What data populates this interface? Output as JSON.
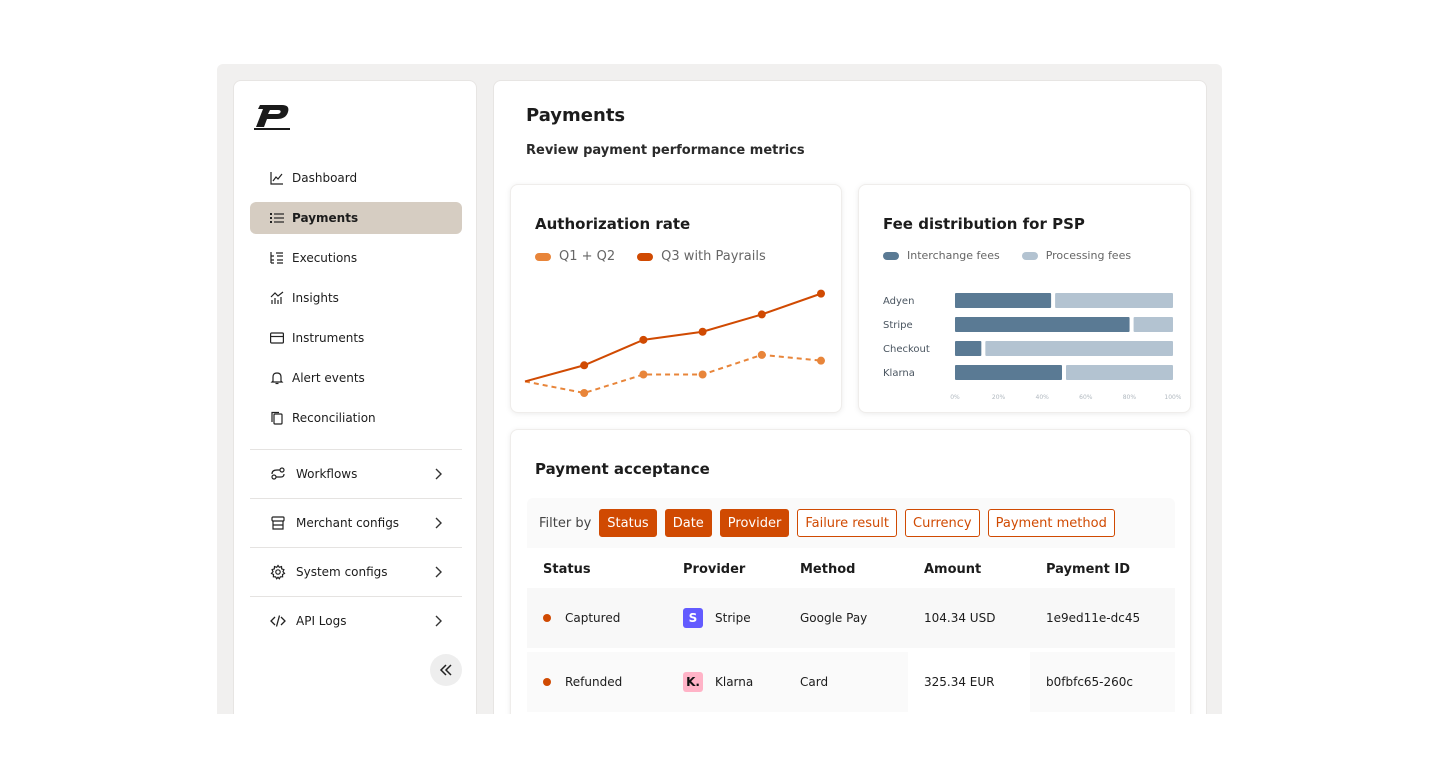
{
  "brand": {
    "logo_letter": "P"
  },
  "sidebar": {
    "items": [
      {
        "label": "Dashboard",
        "icon": "chart-line-icon"
      },
      {
        "label": "Payments",
        "icon": "list-icon"
      },
      {
        "label": "Executions",
        "icon": "tree-list-icon"
      },
      {
        "label": "Insights",
        "icon": "analytics-icon"
      },
      {
        "label": "Instruments",
        "icon": "card-icon"
      },
      {
        "label": "Alert events",
        "icon": "bell-icon"
      },
      {
        "label": "Reconciliation",
        "icon": "copy-icon"
      }
    ],
    "groups": [
      {
        "label": "Workflows",
        "icon": "workflow-icon"
      },
      {
        "label": "Merchant configs",
        "icon": "store-icon"
      },
      {
        "label": "System configs",
        "icon": "gear-icon"
      },
      {
        "label": "API Logs",
        "icon": "code-icon"
      }
    ]
  },
  "main": {
    "title": "Payments",
    "subtitle": "Review payment performance metrics"
  },
  "auth_card": {
    "title": "Authorization rate",
    "legend": [
      {
        "label": "Q1 + Q2",
        "color": "#e8853a"
      },
      {
        "label": "Q3 with Payrails",
        "color": "#d04a02"
      }
    ]
  },
  "fee_card": {
    "title": "Fee distribution for PSP",
    "legend": [
      {
        "label": "Interchange fees",
        "color": "#5a7a94"
      },
      {
        "label": "Processing fees",
        "color": "#b3c3d1"
      }
    ]
  },
  "chart_data": [
    {
      "type": "line",
      "title": "Authorization rate",
      "x": [
        0,
        1,
        2,
        3,
        4,
        5
      ],
      "series": [
        {
          "name": "Q1 + Q2",
          "style": "dashed",
          "color": "#e8853a",
          "values": [
            1,
            0,
            1.6,
            1.6,
            3.3,
            2.8
          ]
        },
        {
          "name": "Q3 with Payrails",
          "style": "solid",
          "color": "#d04a02",
          "values": [
            1,
            2.4,
            4.6,
            5.3,
            6.8,
            8.6
          ]
        }
      ],
      "ylim": [
        0,
        9
      ],
      "grid": false
    },
    {
      "type": "bar",
      "orientation": "horizontal",
      "stacked": true,
      "title": "Fee distribution for PSP",
      "categories": [
        "Adyen",
        "Stripe",
        "Checkout",
        "Klarna"
      ],
      "series": [
        {
          "name": "Interchange fees",
          "color": "#5a7a94",
          "values": [
            45,
            81,
            13,
            50
          ]
        },
        {
          "name": "Processing fees",
          "color": "#b3c3d1",
          "values": [
            55,
            19,
            87,
            50
          ]
        }
      ],
      "xticks": [
        "0%",
        "20%",
        "40%",
        "60%",
        "80%",
        "100%"
      ],
      "xlim": [
        0,
        100
      ]
    }
  ],
  "acceptance": {
    "title": "Payment acceptance",
    "filter_label": "Filter by",
    "filters": [
      {
        "label": "Status",
        "active": true
      },
      {
        "label": "Date",
        "active": true
      },
      {
        "label": "Provider",
        "active": true
      },
      {
        "label": "Failure result",
        "active": false
      },
      {
        "label": "Currency",
        "active": false
      },
      {
        "label": "Payment method",
        "active": false
      }
    ],
    "columns": [
      "Status",
      "Provider",
      "Method",
      "Amount",
      "Payment ID"
    ],
    "rows": [
      {
        "status": "Captured",
        "provider": "Stripe",
        "provider_logo": "S",
        "method": "Google Pay",
        "amount": "104.34 USD",
        "id": "1e9ed11e-dc45"
      },
      {
        "status": "Refunded",
        "provider": "Klarna",
        "provider_logo": "K.",
        "method": "Card",
        "amount": "325.34 EUR",
        "id": "b0fbfc65-260c"
      }
    ]
  }
}
